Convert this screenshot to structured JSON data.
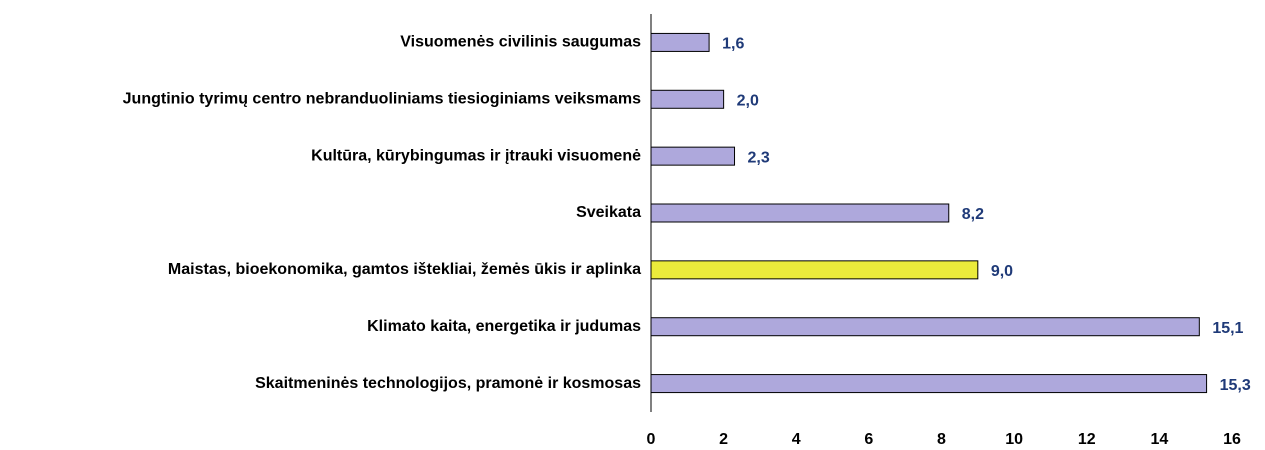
{
  "chart_data": {
    "type": "hbar",
    "categories": [
      "Visuomenės civilinis saugumas",
      "Jungtinio tyrimų centro nebranduoliniams tiesioginiams veiksmams",
      "Kultūra, kūrybingumas ir įtrauki visuomenė",
      "Sveikata",
      "Maistas, bioekonomika, gamtos ištekliai, žemės ūkis ir aplinka",
      "Klimato kaita, energetika ir judumas",
      "Skaitmeninės technologijos, pramonė ir kosmosas"
    ],
    "values": [
      1.6,
      2.0,
      2.3,
      8.2,
      9.0,
      15.1,
      15.3
    ],
    "value_labels": [
      "1,6",
      "2,0",
      "2,3",
      "8,2",
      "9,0",
      "15,1",
      "15,3"
    ],
    "colors": [
      "#aea8dc",
      "#aea8dc",
      "#aea8dc",
      "#aea8dc",
      "#ebeb3b",
      "#aea8dc",
      "#aea8dc"
    ],
    "value_label_color": "#1f3a78",
    "xlim": [
      0,
      16
    ],
    "xticks": [
      0,
      2,
      4,
      6,
      8,
      10,
      12,
      14,
      16
    ],
    "grid": false
  }
}
